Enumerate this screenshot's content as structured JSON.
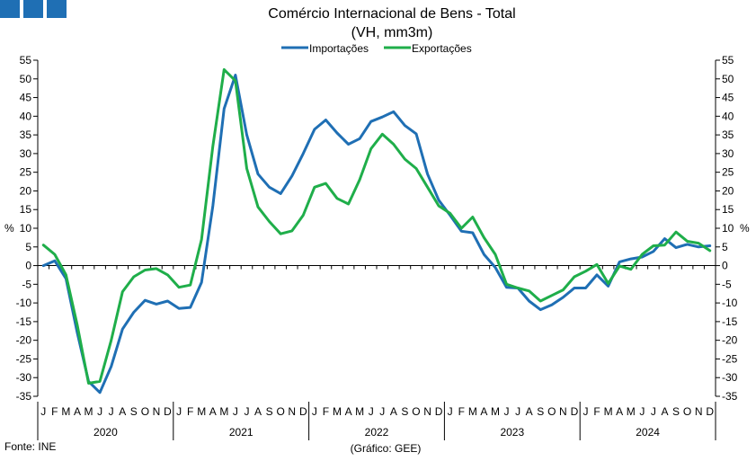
{
  "brand_color": "#1f6fb4",
  "chart_data": {
    "type": "line",
    "title": "Comércio Internacional de Bens - Total",
    "subtitle": "(VH, mm3m)",
    "ylabel_left": "%",
    "ylabel_right": "%",
    "ylim": [
      -35,
      55
    ],
    "yticks": [
      55,
      50,
      45,
      40,
      35,
      30,
      25,
      20,
      15,
      10,
      5,
      0,
      -5,
      -10,
      -15,
      -20,
      -25,
      -30,
      -35
    ],
    "grid": false,
    "legend_position": "top",
    "years": [
      "2020",
      "2021",
      "2022",
      "2023",
      "2024"
    ],
    "months": [
      "J",
      "F",
      "M",
      "A",
      "M",
      "J",
      "J",
      "A",
      "S",
      "O",
      "N",
      "D",
      "J",
      "F",
      "M",
      "A",
      "M",
      "J",
      "J",
      "A",
      "S",
      "O",
      "N",
      "D",
      "J",
      "F",
      "M",
      "A",
      "M",
      "J",
      "J",
      "A",
      "S",
      "O",
      "N",
      "D",
      "J",
      "F",
      "M",
      "A",
      "M",
      "J",
      "J",
      "A",
      "S",
      "O",
      "N",
      "D",
      "J",
      "F",
      "M",
      "A",
      "M",
      "J",
      "J",
      "A",
      "S",
      "O",
      "N",
      "D"
    ],
    "series": [
      {
        "name": "Importações",
        "color": "#1f6fb4",
        "values": [
          0,
          1.3,
          -3.5,
          -18,
          -31,
          -34,
          -27,
          -17,
          -12.5,
          -9.3,
          -10.3,
          -9.5,
          -11.5,
          -11.2,
          -4.5,
          16,
          42,
          51,
          35,
          24.5,
          21,
          19.3,
          24,
          30,
          36.5,
          39,
          35.5,
          32.5,
          34,
          38.6,
          39.8,
          41.2,
          37.5,
          35.3,
          24.5,
          17.5,
          13.5,
          9.2,
          8.8,
          3,
          -0.5,
          -5.8,
          -6,
          -9.5,
          -11.8,
          -10.5,
          -8.5,
          -6,
          -6,
          -2.5,
          -5.5,
          1,
          1.8,
          2.3,
          3.8,
          7.2,
          4.8,
          5.7,
          5,
          5.3
        ]
      },
      {
        "name": "Exportações",
        "color": "#1fae4a",
        "values": [
          5.5,
          3,
          -2.5,
          -16,
          -31.5,
          -31,
          -20,
          -7,
          -3,
          -1.2,
          -0.8,
          -2.5,
          -5.8,
          -5.2,
          7,
          32,
          52.5,
          49.5,
          26,
          15.7,
          11.8,
          8.5,
          9.3,
          13.5,
          21,
          22,
          18,
          16.5,
          23,
          31.3,
          35.2,
          32.5,
          28.5,
          26,
          21,
          16,
          14,
          10,
          13,
          7.5,
          3,
          -5,
          -6,
          -6.8,
          -9.5,
          -8,
          -6.5,
          -3,
          -1.5,
          0.3,
          -4.8,
          -0.1,
          -1,
          3,
          5.3,
          5.5,
          9,
          6.5,
          6,
          4
        ]
      }
    ]
  },
  "footer": {
    "source": "Fonte: INE",
    "credit": "(Gráfico: GEE)"
  }
}
